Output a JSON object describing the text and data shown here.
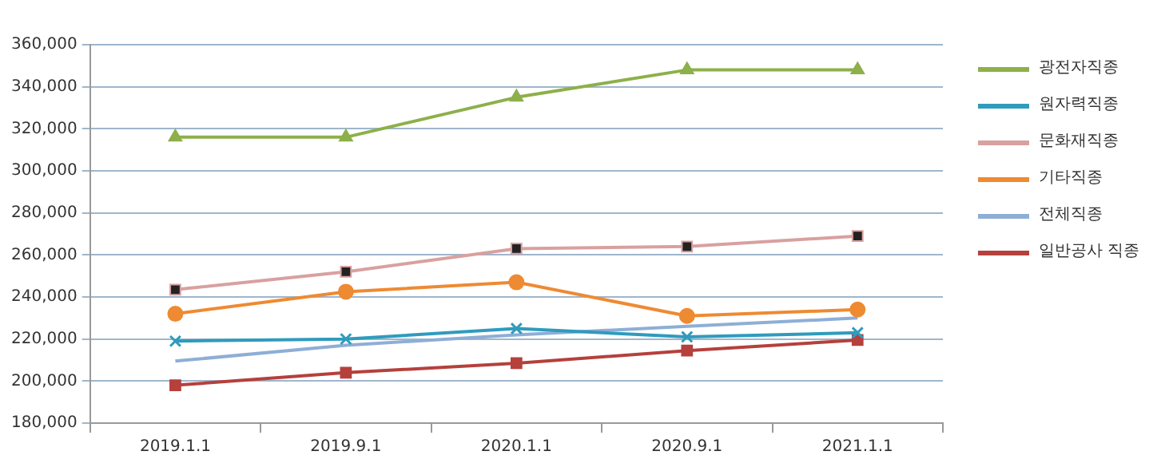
{
  "chart_data": {
    "type": "line",
    "categories": [
      "2019.1.1",
      "2019.9.1",
      "2020.1.1",
      "2020.9.1",
      "2021.1.1"
    ],
    "series": [
      {
        "name": "광전자직종",
        "color": "#8db04a",
        "marker": "triangle",
        "values": [
          316000,
          316000,
          335000,
          348000,
          348000
        ]
      },
      {
        "name": "원자력직종",
        "color": "#2f9bbd",
        "marker": "cross",
        "values": [
          219000,
          220000,
          225000,
          221000,
          223000
        ]
      },
      {
        "name": "문화재직종",
        "color": "#d9a0a0",
        "marker": "square",
        "values": [
          243500,
          252000,
          263000,
          264000,
          269000
        ]
      },
      {
        "name": "기타직종",
        "color": "#ee8a32",
        "marker": "circle",
        "values": [
          232000,
          242500,
          247000,
          231000,
          234000
        ]
      },
      {
        "name": "전체직종",
        "color": "#8eaed6",
        "marker": "none",
        "values": [
          209500,
          217000,
          222000,
          226000,
          230000
        ]
      },
      {
        "name": "일반공사 직종",
        "color": "#b5403c",
        "marker": "square",
        "values": [
          198000,
          204000,
          208500,
          214500,
          219500
        ]
      }
    ],
    "ylim": [
      180000,
      360000
    ],
    "yticks": [
      {
        "value": 180000,
        "label": "180,000"
      },
      {
        "value": 200000,
        "label": "200,000"
      },
      {
        "value": 220000,
        "label": "220,000"
      },
      {
        "value": 240000,
        "label": "240,000"
      },
      {
        "value": 260000,
        "label": "260,000"
      },
      {
        "value": 280000,
        "label": "280,000"
      },
      {
        "value": 300000,
        "label": "300,000"
      },
      {
        "value": 320000,
        "label": "320,000"
      },
      {
        "value": 340000,
        "label": "340,000"
      },
      {
        "value": 360000,
        "label": "360,000"
      }
    ],
    "grid": "y",
    "legend": "right"
  }
}
